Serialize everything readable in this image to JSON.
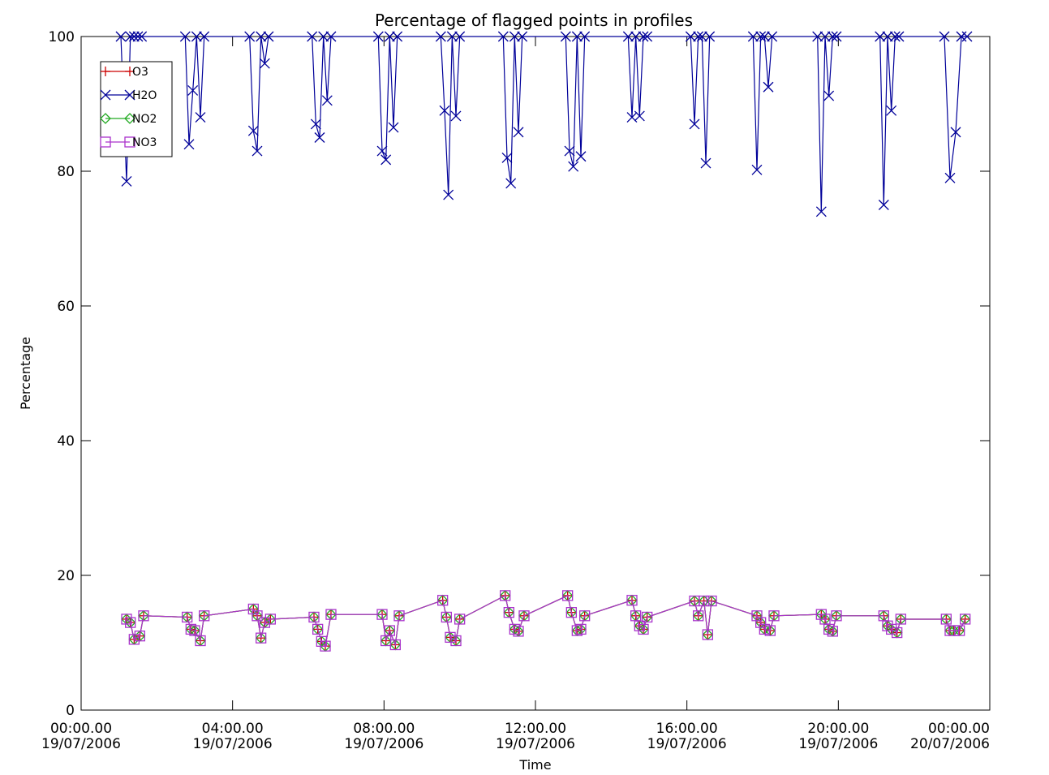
{
  "chart_data": {
    "type": "line",
    "title": "Percentage of flagged points in profiles",
    "xlabel": "Time",
    "ylabel": "Percentage",
    "xlim": [
      0,
      24
    ],
    "ylim": [
      0,
      100
    ],
    "yticks": [
      0,
      20,
      40,
      60,
      80,
      100
    ],
    "xticks": [
      {
        "value": 0,
        "line1": "00:00.00",
        "line2": "19/07/2006"
      },
      {
        "value": 4,
        "line1": "04:00.00",
        "line2": "19/07/2006"
      },
      {
        "value": 8,
        "line1": "08:00.00",
        "line2": "19/07/2006"
      },
      {
        "value": 12,
        "line1": "12:00.00",
        "line2": "19/07/2006"
      },
      {
        "value": 16,
        "line1": "16:00.00",
        "line2": "19/07/2006"
      },
      {
        "value": 20,
        "line1": "20:00.00",
        "line2": "19/07/2006"
      },
      {
        "value": 24,
        "line1": "00:00.00",
        "line2": "20/07/2006"
      }
    ],
    "grid": false,
    "legend_position": "top-left",
    "series": [
      {
        "name": "O3",
        "color": "#cc0000",
        "marker": "plus",
        "x": [
          1.2,
          1.3,
          1.4,
          1.55,
          1.65,
          2.8,
          2.9,
          3.0,
          3.15,
          3.25,
          4.55,
          4.65,
          4.75,
          4.85,
          5.0,
          6.15,
          6.25,
          6.35,
          6.45,
          6.6,
          7.95,
          8.05,
          8.15,
          8.3,
          8.4,
          9.55,
          9.65,
          9.75,
          9.9,
          10.0,
          11.2,
          11.3,
          11.45,
          11.55,
          11.7,
          12.85,
          12.95,
          13.1,
          13.2,
          13.3,
          14.55,
          14.65,
          14.75,
          14.85,
          14.95,
          16.2,
          16.3,
          16.45,
          16.55,
          16.65,
          17.85,
          17.95,
          18.05,
          18.2,
          18.3,
          19.55,
          19.65,
          19.75,
          19.85,
          19.95,
          21.2,
          21.3,
          21.4,
          21.55,
          21.65,
          22.85,
          22.95,
          23.05,
          23.2,
          23.35
        ],
        "y": [
          13.5,
          13,
          10.5,
          11,
          14,
          13.8,
          12,
          11.8,
          10.3,
          14,
          15,
          14,
          10.7,
          13,
          13.5,
          13.8,
          12,
          10.2,
          9.5,
          14.2,
          14.2,
          10.3,
          11.8,
          9.7,
          14,
          16.3,
          13.8,
          10.8,
          10.3,
          13.5,
          17,
          14.5,
          12,
          11.7,
          14,
          17,
          14.5,
          11.8,
          12,
          14,
          16.3,
          14,
          12.5,
          12,
          13.8,
          16.2,
          14,
          16.2,
          11.2,
          16.2,
          14,
          13,
          12,
          11.8,
          14,
          14.2,
          13.5,
          12,
          11.7,
          14,
          14,
          12.5,
          12,
          11.5,
          13.5,
          13.5,
          11.8,
          11.8,
          11.8,
          13.5
        ]
      },
      {
        "name": "H2O",
        "color": "#000099",
        "marker": "x",
        "x": [
          1.05,
          1.2,
          1.3,
          1.4,
          1.5,
          1.6,
          2.75,
          2.85,
          2.95,
          3.05,
          3.15,
          3.25,
          4.45,
          4.55,
          4.65,
          4.75,
          4.85,
          4.95,
          6.1,
          6.2,
          6.3,
          6.4,
          6.5,
          6.6,
          7.85,
          7.95,
          8.05,
          8.15,
          8.25,
          8.35,
          9.5,
          9.6,
          9.7,
          9.8,
          9.9,
          10.0,
          11.15,
          11.25,
          11.35,
          11.45,
          11.55,
          11.65,
          12.8,
          12.9,
          13.0,
          13.1,
          13.2,
          13.3,
          14.45,
          14.55,
          14.65,
          14.75,
          14.85,
          14.95,
          16.1,
          16.2,
          16.3,
          16.4,
          16.5,
          16.6,
          17.75,
          17.85,
          17.95,
          18.05,
          18.15,
          18.25,
          19.45,
          19.55,
          19.65,
          19.75,
          19.85,
          19.95,
          21.1,
          21.2,
          21.3,
          21.4,
          21.5,
          21.6,
          22.8,
          22.95,
          23.1,
          23.25,
          23.4
        ],
        "y": [
          100,
          78.5,
          100,
          100,
          100,
          100,
          100,
          84,
          92,
          100,
          88,
          100,
          100,
          86,
          83,
          100,
          96,
          100,
          100,
          87,
          85,
          100,
          90.5,
          100,
          100,
          83,
          81.7,
          100,
          86.5,
          100,
          100,
          89,
          76.5,
          100,
          88.2,
          100,
          100,
          82,
          78.2,
          100,
          85.8,
          100,
          100,
          83,
          80.7,
          100,
          82.2,
          100,
          100,
          88,
          100,
          88.2,
          100,
          100,
          100,
          87,
          100,
          100,
          81.2,
          100,
          100,
          80.2,
          100,
          100,
          92.5,
          100,
          100,
          74,
          100,
          91.2,
          100,
          100,
          100,
          75,
          100,
          89,
          100,
          100,
          100,
          79,
          85.8,
          100,
          100
        ]
      },
      {
        "name": "NO2",
        "color": "#22aa22",
        "marker": "diamond",
        "x": [
          1.2,
          1.3,
          1.4,
          1.55,
          1.65,
          2.8,
          2.9,
          3.0,
          3.15,
          3.25,
          4.55,
          4.65,
          4.75,
          4.85,
          5.0,
          6.15,
          6.25,
          6.35,
          6.45,
          6.6,
          7.95,
          8.05,
          8.15,
          8.3,
          8.4,
          9.55,
          9.65,
          9.75,
          9.9,
          10.0,
          11.2,
          11.3,
          11.45,
          11.55,
          11.7,
          12.85,
          12.95,
          13.1,
          13.2,
          13.3,
          14.55,
          14.65,
          14.75,
          14.85,
          14.95,
          16.2,
          16.3,
          16.45,
          16.55,
          16.65,
          17.85,
          17.95,
          18.05,
          18.2,
          18.3,
          19.55,
          19.65,
          19.75,
          19.85,
          19.95,
          21.2,
          21.3,
          21.4,
          21.55,
          21.65,
          22.85,
          22.95,
          23.05,
          23.2,
          23.35
        ],
        "y": [
          13.5,
          13,
          10.5,
          11,
          14,
          13.8,
          12,
          11.8,
          10.3,
          14,
          15,
          14,
          10.7,
          13,
          13.5,
          13.8,
          12,
          10.2,
          9.5,
          14.2,
          14.2,
          10.3,
          11.8,
          9.7,
          14,
          16.3,
          13.8,
          10.8,
          10.3,
          13.5,
          17,
          14.5,
          12,
          11.7,
          14,
          17,
          14.5,
          11.8,
          12,
          14,
          16.3,
          14,
          12.5,
          12,
          13.8,
          16.2,
          14,
          16.2,
          11.2,
          16.2,
          14,
          13,
          12,
          11.8,
          14,
          14.2,
          13.5,
          12,
          11.7,
          14,
          14,
          12.5,
          12,
          11.5,
          13.5,
          13.5,
          11.8,
          11.8,
          11.8,
          13.5
        ]
      },
      {
        "name": "NO3",
        "color": "#aa33cc",
        "marker": "square",
        "x": [
          1.2,
          1.3,
          1.4,
          1.55,
          1.65,
          2.8,
          2.9,
          3.0,
          3.15,
          3.25,
          4.55,
          4.65,
          4.75,
          4.85,
          5.0,
          6.15,
          6.25,
          6.35,
          6.45,
          6.6,
          7.95,
          8.05,
          8.15,
          8.3,
          8.4,
          9.55,
          9.65,
          9.75,
          9.9,
          10.0,
          11.2,
          11.3,
          11.45,
          11.55,
          11.7,
          12.85,
          12.95,
          13.1,
          13.2,
          13.3,
          14.55,
          14.65,
          14.75,
          14.85,
          14.95,
          16.2,
          16.3,
          16.45,
          16.55,
          16.65,
          17.85,
          17.95,
          18.05,
          18.2,
          18.3,
          19.55,
          19.65,
          19.75,
          19.85,
          19.95,
          21.2,
          21.3,
          21.4,
          21.55,
          21.65,
          22.85,
          22.95,
          23.05,
          23.2,
          23.35
        ],
        "y": [
          13.5,
          13,
          10.5,
          11,
          14,
          13.8,
          12,
          11.8,
          10.3,
          14,
          15,
          14,
          10.7,
          13,
          13.5,
          13.8,
          12,
          10.2,
          9.5,
          14.2,
          14.2,
          10.3,
          11.8,
          9.7,
          14,
          16.3,
          13.8,
          10.8,
          10.3,
          13.5,
          17,
          14.5,
          12,
          11.7,
          14,
          17,
          14.5,
          11.8,
          12,
          14,
          16.3,
          14,
          12.5,
          12,
          13.8,
          16.2,
          14,
          16.2,
          11.2,
          16.2,
          14,
          13,
          12,
          11.8,
          14,
          14.2,
          13.5,
          12,
          11.7,
          14,
          14,
          12.5,
          12,
          11.5,
          13.5,
          13.5,
          11.8,
          11.8,
          11.8,
          13.5
        ]
      }
    ]
  }
}
